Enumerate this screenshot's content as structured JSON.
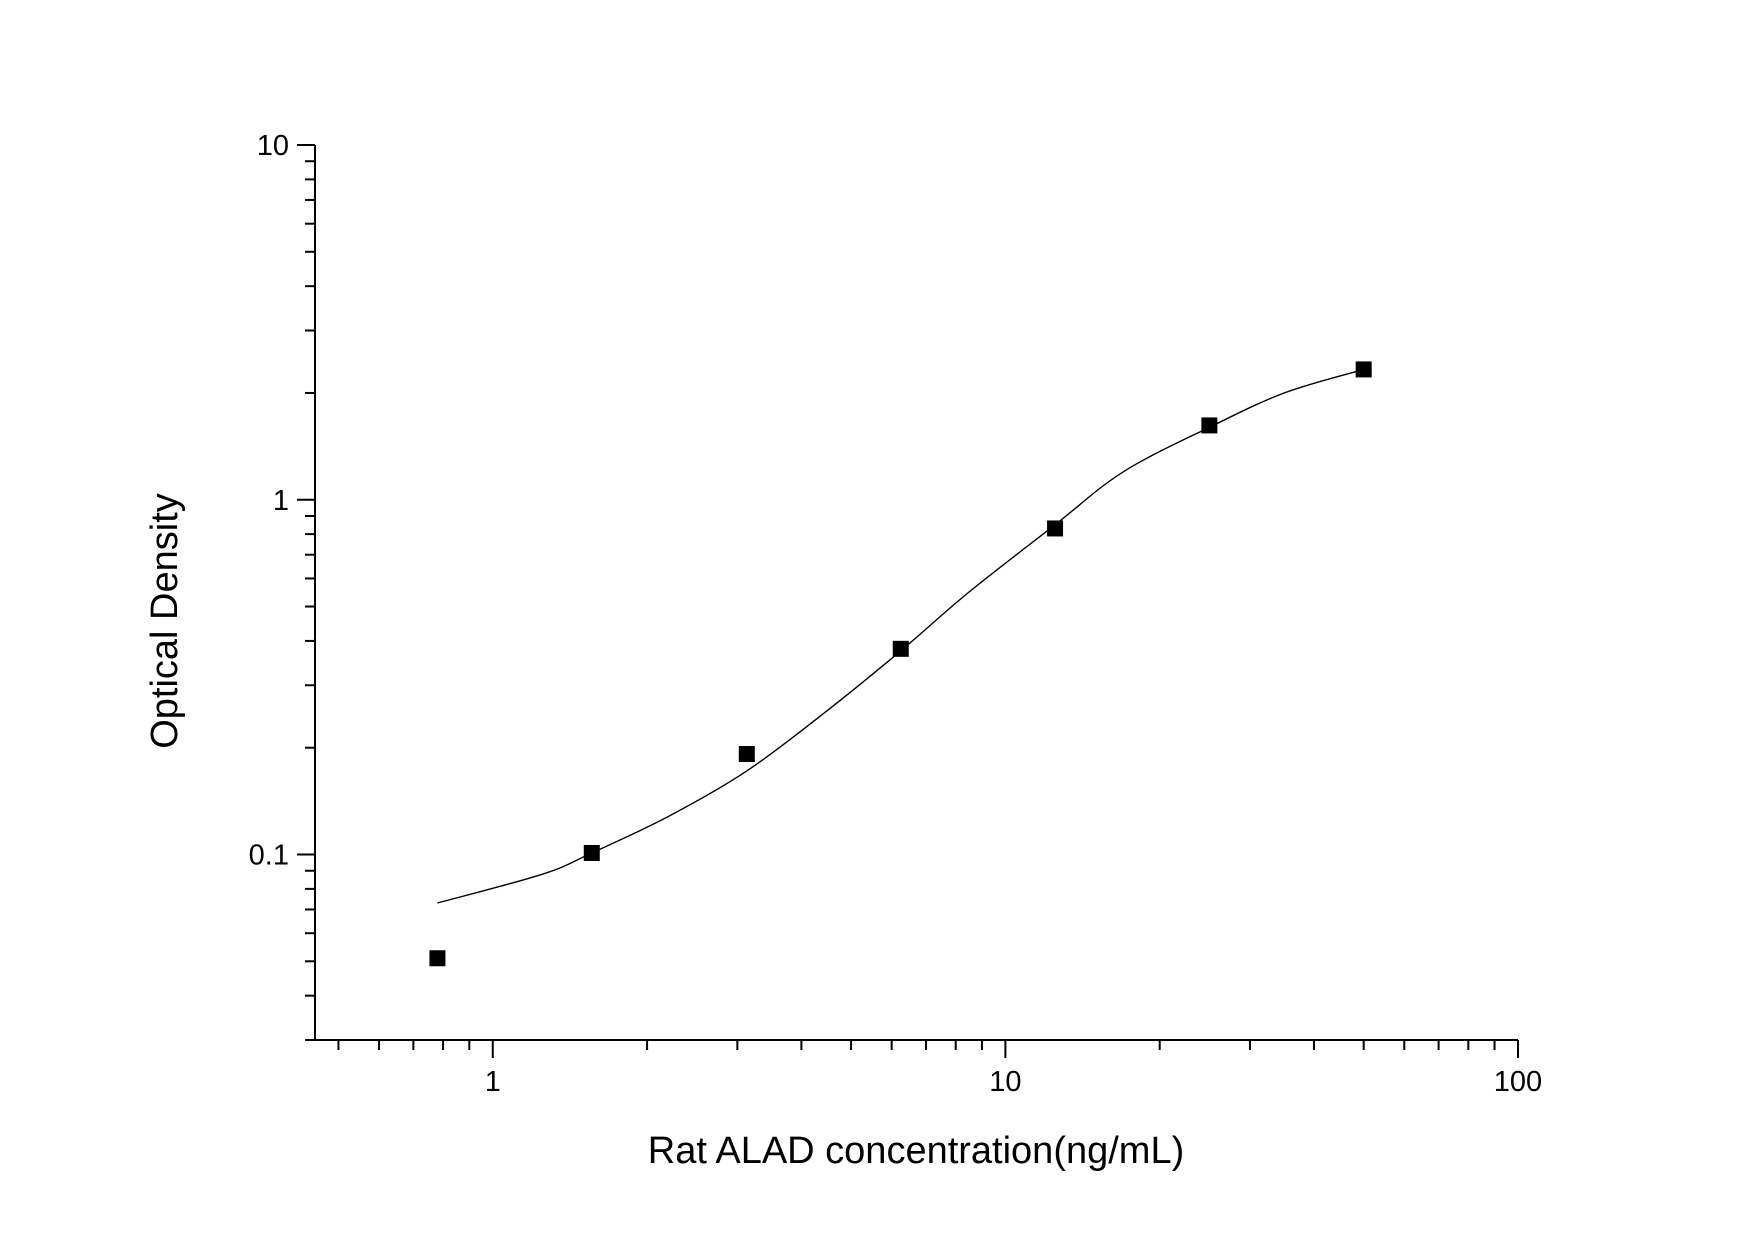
{
  "chart_data": {
    "type": "scatter",
    "xlabel": "Rat ALAD concentration(ng/mL)",
    "ylabel": "Optical Density",
    "x_scale": "log",
    "y_scale": "log",
    "xlim": [
      0.45,
      100
    ],
    "ylim": [
      0.03,
      10
    ],
    "x_ticks": [
      {
        "value": 1,
        "label": "1"
      },
      {
        "value": 10,
        "label": "10"
      },
      {
        "value": 100,
        "label": "100"
      }
    ],
    "y_ticks": [
      {
        "value": 0.1,
        "label": "0.1"
      },
      {
        "value": 1,
        "label": "1"
      },
      {
        "value": 10,
        "label": "10"
      }
    ],
    "grid": false,
    "legend": "none",
    "series": [
      {
        "marker": "square",
        "color": "#000000",
        "points": [
          {
            "x": 0.78,
            "y": 0.051
          },
          {
            "x": 1.56,
            "y": 0.101
          },
          {
            "x": 3.13,
            "y": 0.192
          },
          {
            "x": 6.25,
            "y": 0.38
          },
          {
            "x": 12.5,
            "y": 0.83
          },
          {
            "x": 25,
            "y": 1.62
          },
          {
            "x": 50,
            "y": 2.33
          }
        ]
      }
    ],
    "fit_curve": {
      "color": "#000000",
      "points": [
        {
          "x": 0.78,
          "y": 0.073
        },
        {
          "x": 1.25,
          "y": 0.088
        },
        {
          "x": 1.56,
          "y": 0.101
        },
        {
          "x": 2.2,
          "y": 0.128
        },
        {
          "x": 3.13,
          "y": 0.172
        },
        {
          "x": 4.5,
          "y": 0.255
        },
        {
          "x": 6.25,
          "y": 0.375
        },
        {
          "x": 8.5,
          "y": 0.55
        },
        {
          "x": 12.5,
          "y": 0.85
        },
        {
          "x": 17,
          "y": 1.2
        },
        {
          "x": 25,
          "y": 1.6
        },
        {
          "x": 35,
          "y": 2.0
        },
        {
          "x": 50,
          "y": 2.33
        }
      ]
    }
  }
}
